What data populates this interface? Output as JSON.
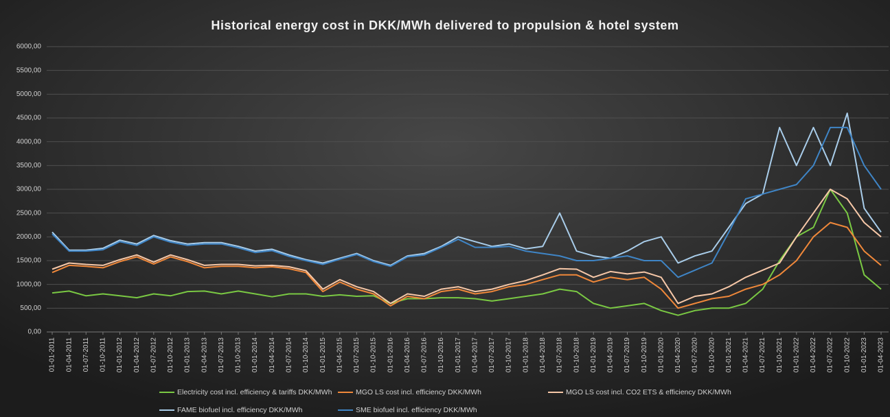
{
  "chart_data": {
    "type": "line",
    "title": "Historical  energy  cost  in  DKK/MWh  delivered  to  propulsion  &  hotel  system",
    "categories": [
      "01-01-2011",
      "01-04-2011",
      "01-07-2011",
      "01-10-2011",
      "01-01-2012",
      "01-04-2012",
      "01-07-2012",
      "01-10-2012",
      "01-01-2013",
      "01-04-2013",
      "01-07-2013",
      "01-10-2013",
      "01-01-2014",
      "01-04-2014",
      "01-07-2014",
      "01-10-2014",
      "01-01-2015",
      "01-04-2015",
      "01-07-2015",
      "01-10-2015",
      "01-01-2016",
      "01-04-2016",
      "01-07-2016",
      "01-10-2016",
      "01-01-2017",
      "01-04-2017",
      "01-07-2017",
      "01-10-2017",
      "01-01-2018",
      "01-04-2018",
      "01-07-2018",
      "01-10-2018",
      "01-01-2019",
      "01-04-2019",
      "01-07-2019",
      "01-10-2019",
      "01-01-2020",
      "01-04-2020",
      "01-07-2020",
      "01-10-2020",
      "01-01-2021",
      "01-04-2021",
      "01-07-2021",
      "01-10-2021",
      "01-01-2022",
      "01-04-2022",
      "01-07-2022",
      "01-10-2022",
      "01-01-2023",
      "01-04-2023"
    ],
    "series": [
      {
        "name": "Electricity cost incl. efficiency & tariffs DKK/MWh",
        "color": "#7ac943",
        "values": [
          820,
          860,
          760,
          800,
          760,
          720,
          800,
          760,
          850,
          860,
          800,
          860,
          800,
          740,
          800,
          800,
          750,
          780,
          750,
          760,
          600,
          700,
          700,
          720,
          720,
          700,
          650,
          700,
          750,
          800,
          900,
          850,
          600,
          500,
          550,
          600,
          450,
          350,
          450,
          500,
          500,
          600,
          900,
          1500,
          2000,
          2200,
          3000,
          2500,
          1200,
          900
        ]
      },
      {
        "name": "MGO LS cost incl. efficiency DKK/MWh",
        "color": "#f0883a",
        "values": [
          1250,
          1400,
          1380,
          1350,
          1480,
          1580,
          1430,
          1580,
          1480,
          1350,
          1380,
          1380,
          1350,
          1370,
          1330,
          1250,
          850,
          1050,
          900,
          800,
          550,
          750,
          700,
          850,
          900,
          800,
          850,
          950,
          1000,
          1100,
          1200,
          1200,
          1050,
          1150,
          1100,
          1150,
          900,
          500,
          600,
          700,
          750,
          900,
          1000,
          1200,
          1500,
          2000,
          2300,
          2200,
          1700,
          1400
        ]
      },
      {
        "name": "MGO LS cost incl. CO2 ETS & efficiency DKK/MWh",
        "color": "#f7c8a8",
        "values": [
          1320,
          1450,
          1420,
          1400,
          1520,
          1620,
          1470,
          1620,
          1520,
          1400,
          1420,
          1420,
          1390,
          1400,
          1370,
          1290,
          900,
          1100,
          950,
          850,
          600,
          800,
          750,
          900,
          950,
          850,
          900,
          1000,
          1080,
          1200,
          1330,
          1320,
          1150,
          1270,
          1220,
          1260,
          1150,
          600,
          750,
          800,
          950,
          1150,
          1300,
          1450,
          2000,
          2500,
          3000,
          2800,
          2300,
          2000
        ]
      },
      {
        "name": "FAME biofuel incl. efficiency DKK/MWh",
        "color": "#a9cdea",
        "values": [
          2100,
          1720,
          1720,
          1760,
          1930,
          1850,
          2030,
          1920,
          1850,
          1880,
          1880,
          1800,
          1700,
          1740,
          1620,
          1520,
          1450,
          1550,
          1650,
          1500,
          1400,
          1600,
          1650,
          1800,
          2000,
          1900,
          1800,
          1850,
          1750,
          1800,
          2500,
          1700,
          1600,
          1550,
          1700,
          1900,
          2000,
          1450,
          1600,
          1700,
          2200,
          2700,
          2900,
          4300,
          3500,
          4300,
          3500,
          4600,
          2600,
          2100
        ]
      },
      {
        "name": "SME biofuel incl. efficiency DKK/MWh",
        "color": "#3f85c6",
        "values": [
          2060,
          1700,
          1700,
          1730,
          1900,
          1820,
          2000,
          1890,
          1820,
          1850,
          1850,
          1770,
          1670,
          1710,
          1590,
          1500,
          1420,
          1530,
          1630,
          1480,
          1380,
          1580,
          1620,
          1780,
          1950,
          1780,
          1780,
          1800,
          1700,
          1650,
          1600,
          1500,
          1500,
          1550,
          1600,
          1500,
          1500,
          1150,
          1300,
          1450,
          2100,
          2800,
          2900,
          3000,
          3100,
          3500,
          4300,
          4300,
          3500,
          3000
        ]
      }
    ],
    "ylim": [
      0,
      6000
    ],
    "yticks": [
      {
        "value": 0,
        "label": "0,00"
      },
      {
        "value": 500,
        "label": "500,00"
      },
      {
        "value": 1000,
        "label": "1000,00"
      },
      {
        "value": 1500,
        "label": "1500,00"
      },
      {
        "value": 2000,
        "label": "2000,00"
      },
      {
        "value": 2500,
        "label": "2500,00"
      },
      {
        "value": 3000,
        "label": "3000,00"
      },
      {
        "value": 3500,
        "label": "3500,00"
      },
      {
        "value": 4000,
        "label": "4000,00"
      },
      {
        "value": 4500,
        "label": "4500,00"
      },
      {
        "value": 5000,
        "label": "5000,00"
      },
      {
        "value": 5500,
        "label": "5500,00"
      },
      {
        "value": 6000,
        "label": "6000,00"
      }
    ],
    "grid": true,
    "legend": "bottom"
  }
}
